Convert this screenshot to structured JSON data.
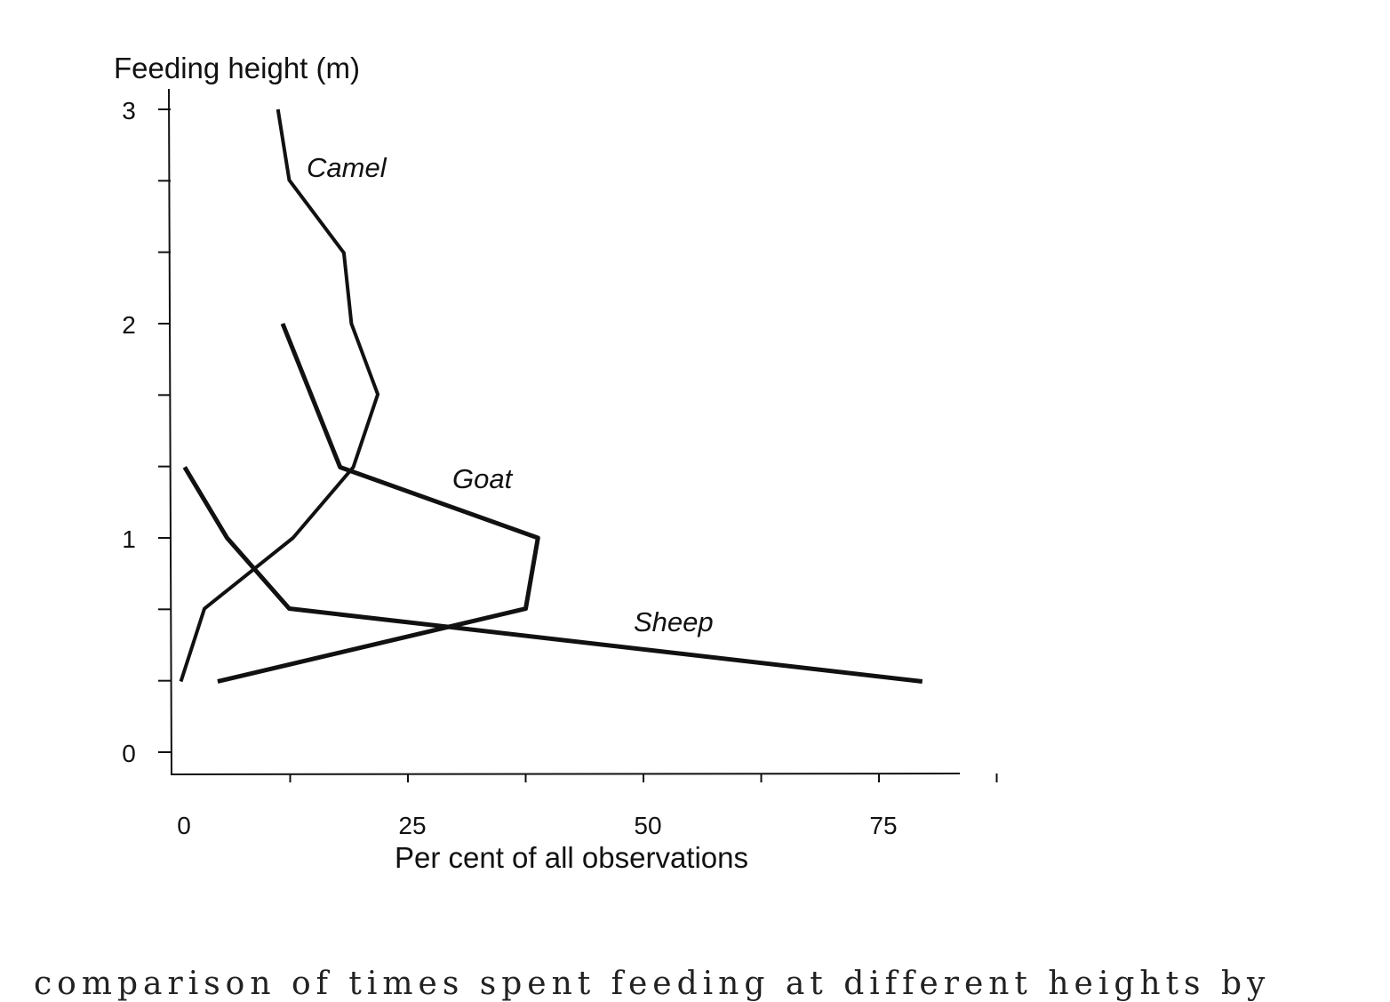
{
  "chart_data": {
    "type": "line",
    "orientation": "vertical-profile",
    "ylabel": "Feeding height (m)",
    "xlabel": "Per cent of all observations",
    "xlim": [
      0,
      80
    ],
    "ylim": [
      0,
      3
    ],
    "x_ticks": [
      0,
      25,
      50,
      75
    ],
    "y_ticks": [
      0,
      1,
      2,
      3
    ],
    "grid": false,
    "series": [
      {
        "name": "Camel",
        "points": [
          [
            11.2,
            3.0
          ],
          [
            12.4,
            2.67
          ],
          [
            18.2,
            2.33
          ],
          [
            19.0,
            2.0
          ],
          [
            21.8,
            1.67
          ],
          [
            19.2,
            1.33
          ],
          [
            12.8,
            1.0
          ],
          [
            3.4,
            0.67
          ],
          [
            0.9,
            0.33
          ]
        ]
      },
      {
        "name": "Goat",
        "points": [
          [
            11.7,
            2.0
          ],
          [
            17.8,
            1.33
          ],
          [
            38.8,
            1.0
          ],
          [
            37.5,
            0.67
          ],
          [
            4.8,
            0.33
          ]
        ]
      },
      {
        "name": "Sheep",
        "points": [
          [
            1.3,
            1.33
          ],
          [
            5.8,
            1.0
          ],
          [
            12.4,
            0.67
          ],
          [
            79.6,
            0.33
          ]
        ]
      }
    ]
  },
  "caption": "comparison of times spent feeding at different heights by"
}
